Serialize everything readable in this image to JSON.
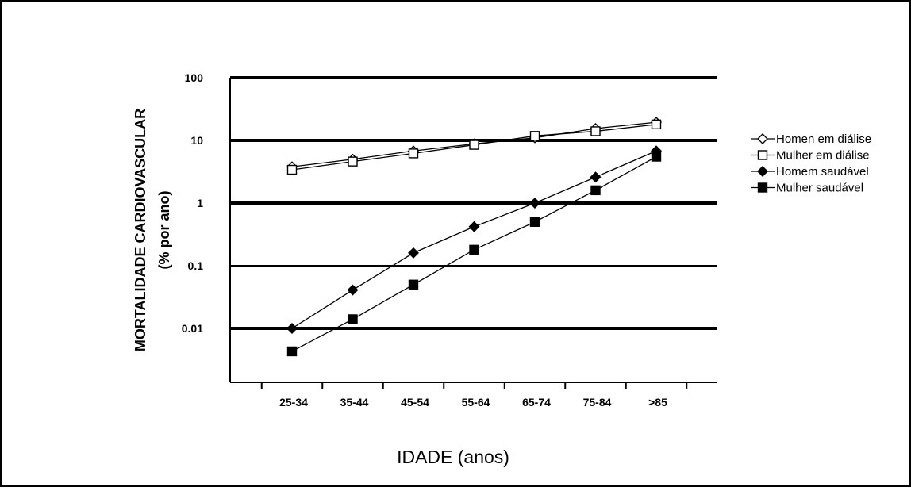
{
  "chart_data": {
    "type": "line",
    "yscale": "log",
    "ylim": [
      0.001,
      100
    ],
    "categories": [
      "25-34",
      "35-44",
      "45-54",
      "55-64",
      "65-74",
      "75-84",
      ">85"
    ],
    "yticks": [
      {
        "value": 100,
        "label": "100"
      },
      {
        "value": 10,
        "label": "10"
      },
      {
        "value": 1,
        "label": "1"
      },
      {
        "value": 0.1,
        "label": "0.1"
      },
      {
        "value": 0.01,
        "label": "0.01"
      }
    ],
    "ylabel_line1": "MORTALIDADE CARDIOVASCULAR",
    "ylabel_line2": "(% por ano)",
    "xlabel": "IDADE (anos)",
    "legend_position": "right",
    "series": [
      {
        "name": "Homen em diálise",
        "marker": "diamond-open",
        "values": [
          3.8,
          5.0,
          6.8,
          8.8,
          11.0,
          15.5,
          19.5
        ]
      },
      {
        "name": "Mulher em diálise",
        "marker": "square-open",
        "values": [
          3.4,
          4.6,
          6.2,
          8.5,
          11.8,
          14.0,
          18.0
        ]
      },
      {
        "name": "Homem saudável",
        "marker": "diamond-filled",
        "values": [
          0.01,
          0.041,
          0.16,
          0.42,
          1.0,
          2.6,
          6.8
        ]
      },
      {
        "name": "Mulher saudável",
        "marker": "square-filled",
        "values": [
          0.0043,
          0.014,
          0.05,
          0.18,
          0.5,
          1.6,
          5.5
        ]
      }
    ]
  }
}
